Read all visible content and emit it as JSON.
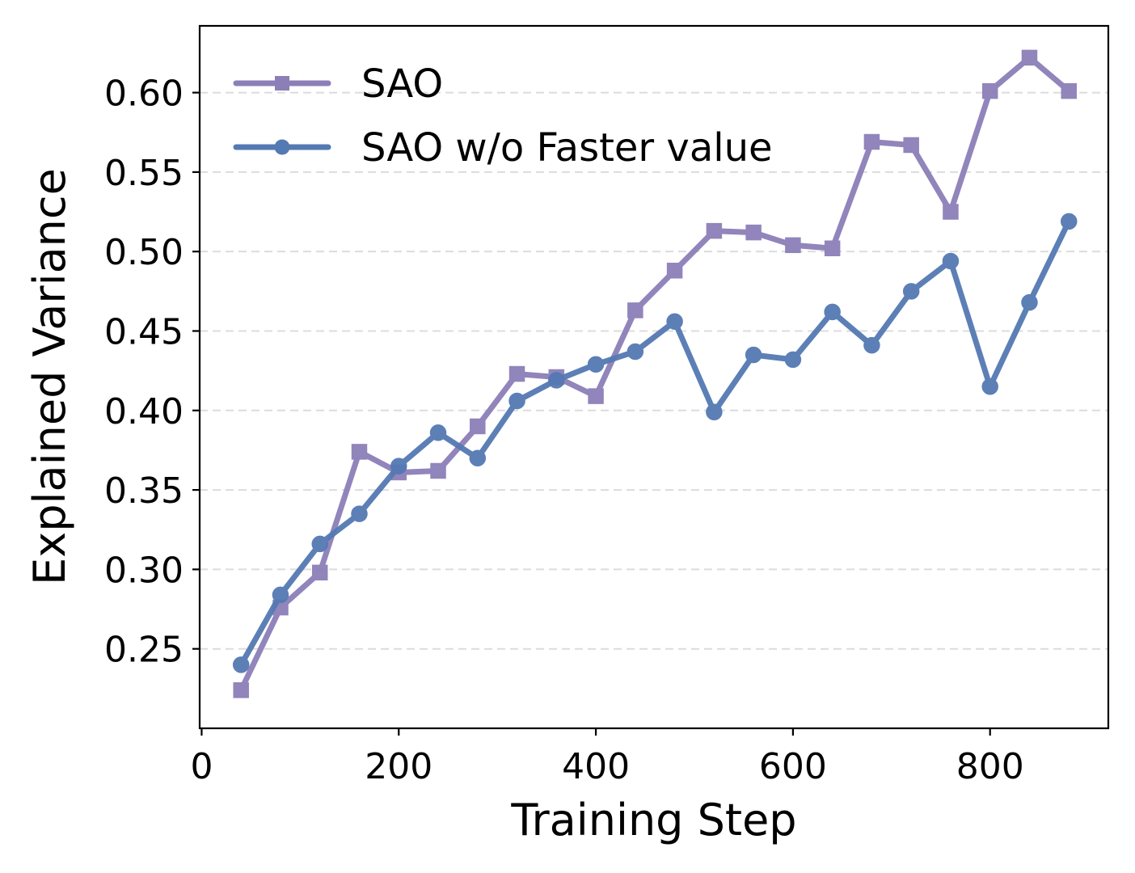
{
  "chart_data": {
    "type": "line",
    "xlabel": "Training Step",
    "ylabel": "Explained Variance",
    "xlim": [
      -2,
      920
    ],
    "ylim": [
      0.2,
      0.642
    ],
    "xticks": [
      0,
      200,
      400,
      600,
      800
    ],
    "xtick_labels": [
      "0",
      "200",
      "400",
      "600",
      "800"
    ],
    "yticks": [
      0.25,
      0.3,
      0.35,
      0.4,
      0.45,
      0.5,
      0.55,
      0.6
    ],
    "ytick_labels": [
      "0.25",
      "0.30",
      "0.35",
      "0.40",
      "0.45",
      "0.50",
      "0.55",
      "0.60"
    ],
    "grid": "horizontal dashed",
    "legend_position": "top-left",
    "x": [
      40,
      80,
      120,
      160,
      200,
      240,
      280,
      320,
      360,
      400,
      440,
      480,
      520,
      560,
      600,
      640,
      680,
      720,
      760,
      800,
      840,
      880
    ],
    "series": [
      {
        "name": "SAO",
        "marker": "square",
        "color": "#8c7fb8",
        "values": [
          0.224,
          0.276,
          0.298,
          0.374,
          0.361,
          0.362,
          0.39,
          0.423,
          0.421,
          0.409,
          0.463,
          0.488,
          0.513,
          0.512,
          0.504,
          0.502,
          0.569,
          0.567,
          0.525,
          0.601,
          0.622,
          0.601
        ]
      },
      {
        "name": "SAO w/o Faster value",
        "marker": "circle",
        "color": "#5479b3",
        "values": [
          0.24,
          0.284,
          0.316,
          0.335,
          0.365,
          0.386,
          0.37,
          0.406,
          0.419,
          0.429,
          0.437,
          0.456,
          0.399,
          0.435,
          0.432,
          0.462,
          0.441,
          0.475,
          0.494,
          0.415,
          0.468,
          0.519
        ]
      }
    ]
  }
}
